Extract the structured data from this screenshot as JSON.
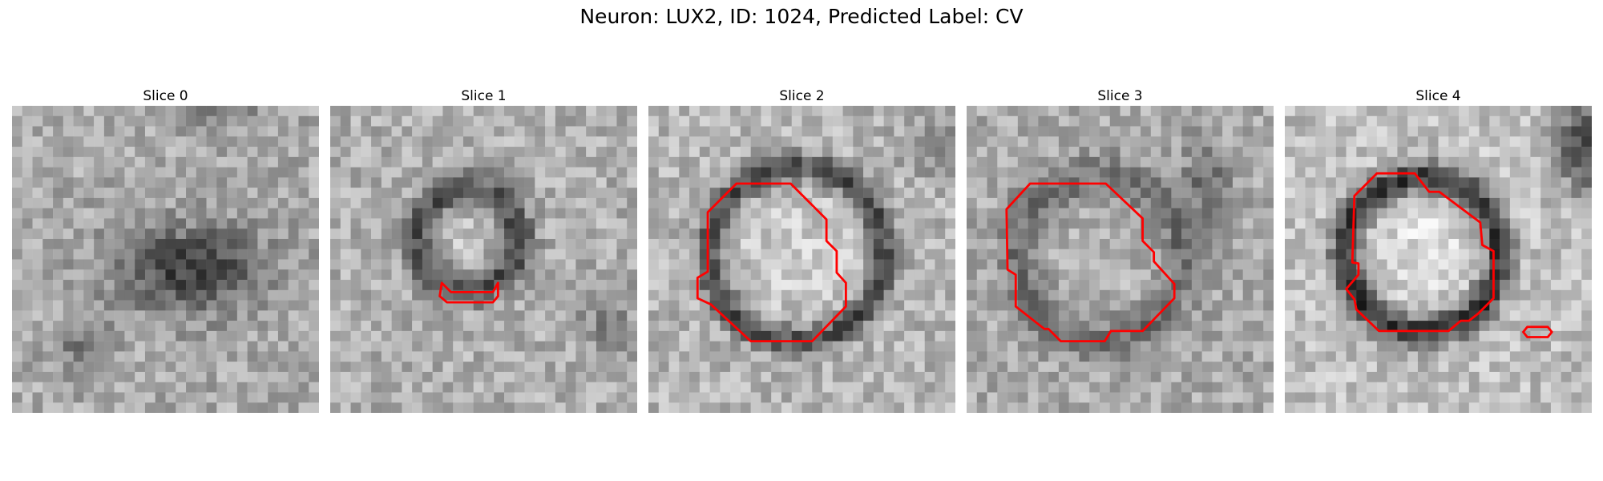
{
  "figure": {
    "title": "Neuron: LUX2, ID: 1024, Predicted Label: CV"
  },
  "slices": [
    {
      "title": "Slice 0"
    },
    {
      "title": "Slice 1"
    },
    {
      "title": "Slice 2"
    },
    {
      "title": "Slice 3"
    },
    {
      "title": "Slice 4"
    }
  ],
  "colors": {
    "contour": "#ff0000",
    "colormap": "grayscale"
  }
}
